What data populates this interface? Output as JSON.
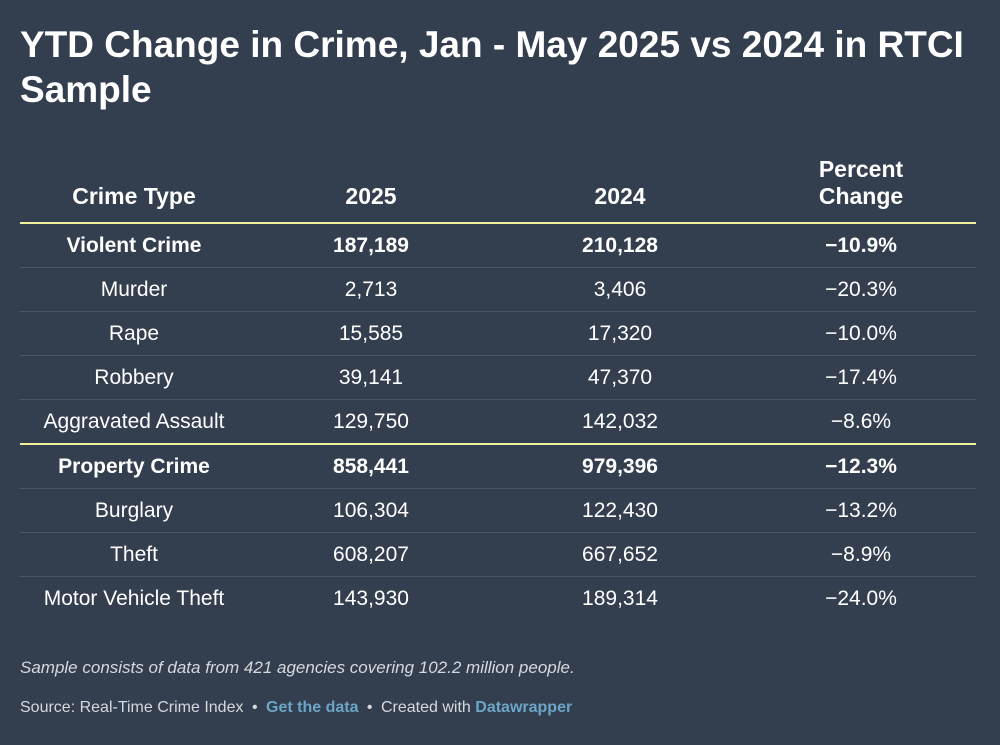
{
  "title": "YTD Change in Crime, Jan - May 2025 vs 2024 in RTCI Sample",
  "chart_data": {
    "type": "table",
    "columns": [
      "Crime Type",
      "2025",
      "2024",
      "Percent Change"
    ],
    "rows": [
      [
        "Violent Crime",
        "187,189",
        "210,128",
        "−10.9%"
      ],
      [
        "Murder",
        "2,713",
        "3,406",
        "−20.3%"
      ],
      [
        "Rape",
        "15,585",
        "17,320",
        "−10.0%"
      ],
      [
        "Robbery",
        "39,141",
        "47,370",
        "−17.4%"
      ],
      [
        "Aggravated Assault",
        "129,750",
        "142,032",
        "−8.6%"
      ],
      [
        "Property Crime",
        "858,441",
        "979,396",
        "−12.3%"
      ],
      [
        "Burglary",
        "106,304",
        "122,430",
        "−13.2%"
      ],
      [
        "Theft",
        "608,207",
        "667,652",
        "−8.9%"
      ],
      [
        "Motor Vehicle Theft",
        "143,930",
        "189,314",
        "−24.0%"
      ]
    ]
  },
  "notes": "Sample consists of data from 421 agencies covering 102.2 million people.",
  "footer": {
    "source": "Source: Real-Time Crime Index",
    "separator": "•",
    "get_data": "Get the data",
    "created_with": "Created with",
    "datawrapper": "Datawrapper"
  },
  "colors": {
    "background": "#333e4e",
    "accent_rule": "#f3f29c",
    "link": "#6ba6c8"
  }
}
